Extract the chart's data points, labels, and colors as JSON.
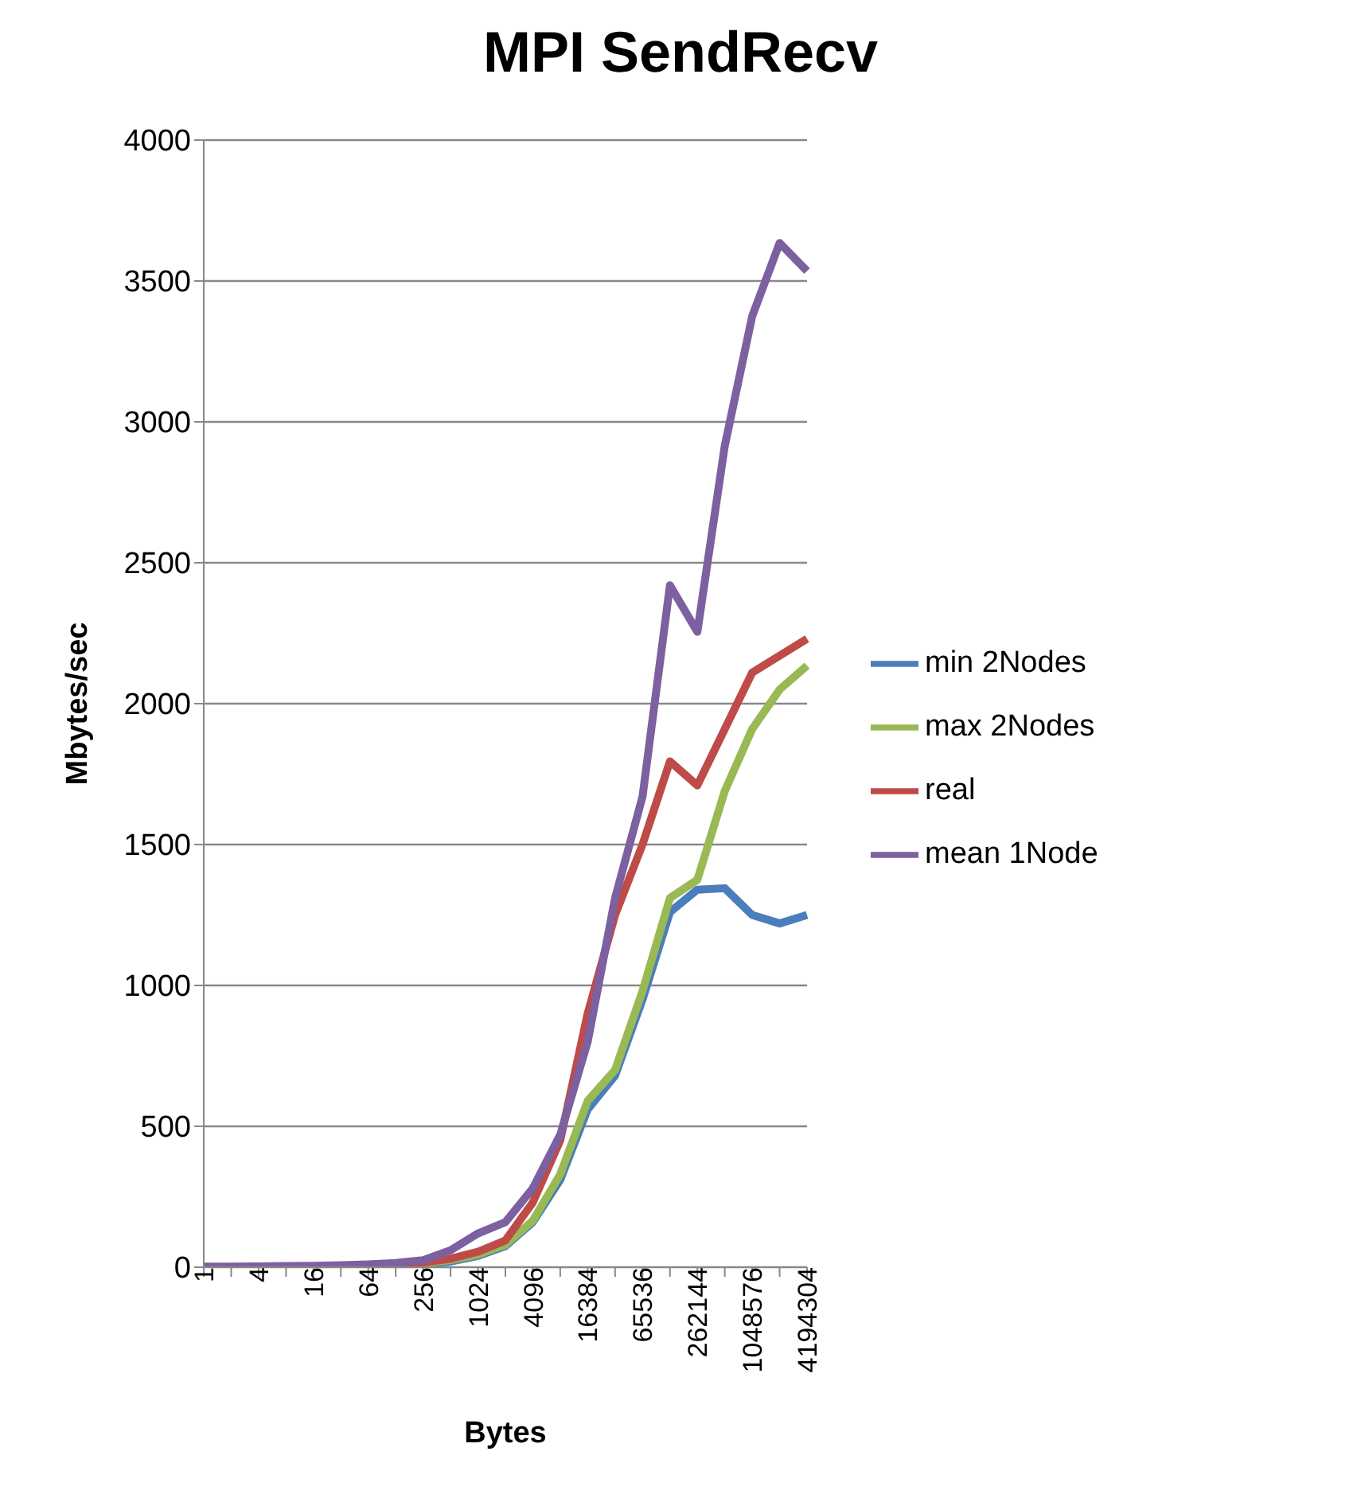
{
  "chart_data": {
    "type": "line",
    "title": "MPI SendRecv",
    "xlabel": "Bytes",
    "ylabel": "Mbytes/sec",
    "categories": [
      "1",
      null,
      "4",
      null,
      "16",
      null,
      "64",
      null,
      "256",
      null,
      "1024",
      null,
      "4096",
      null,
      "16384",
      null,
      "65536",
      null,
      "262144",
      null,
      "1048576",
      null,
      "4194304"
    ],
    "series": [
      {
        "name": "min 2Nodes",
        "color": "#4a7ebb",
        "values": [
          null,
          null,
          1,
          2,
          2,
          3,
          5,
          8,
          12,
          20,
          40,
          75,
          160,
          310,
          560,
          680,
          950,
          1260,
          1340,
          1345,
          1250,
          1220,
          1250
        ]
      },
      {
        "name": "max 2Nodes",
        "color": "#98b954",
        "values": [
          null,
          null,
          null,
          null,
          null,
          null,
          null,
          9,
          14,
          25,
          45,
          80,
          165,
          330,
          590,
          700,
          980,
          1310,
          1375,
          1690,
          1910,
          2050,
          2135
        ]
      },
      {
        "name": "real",
        "color": "#be4b48",
        "values": [
          null,
          null,
          null,
          null,
          null,
          null,
          7,
          10,
          17,
          30,
          55,
          95,
          230,
          450,
          900,
          1250,
          1500,
          1795,
          1710,
          1910,
          2110,
          2170,
          2230
        ]
      },
      {
        "name": "mean 1Node",
        "color": "#7d60a0",
        "values": [
          2,
          2,
          3,
          4,
          5,
          7,
          10,
          15,
          25,
          60,
          120,
          160,
          280,
          470,
          800,
          1310,
          1670,
          2420,
          2255,
          2915,
          3375,
          3635,
          3535
        ]
      }
    ],
    "ylim": [
      0,
      4000
    ],
    "yticks": [
      0,
      500,
      1000,
      1500,
      2000,
      2500,
      3000,
      3500,
      4000
    ],
    "grid": "y",
    "legend": "right",
    "marker": "none",
    "line_style": "solid"
  }
}
